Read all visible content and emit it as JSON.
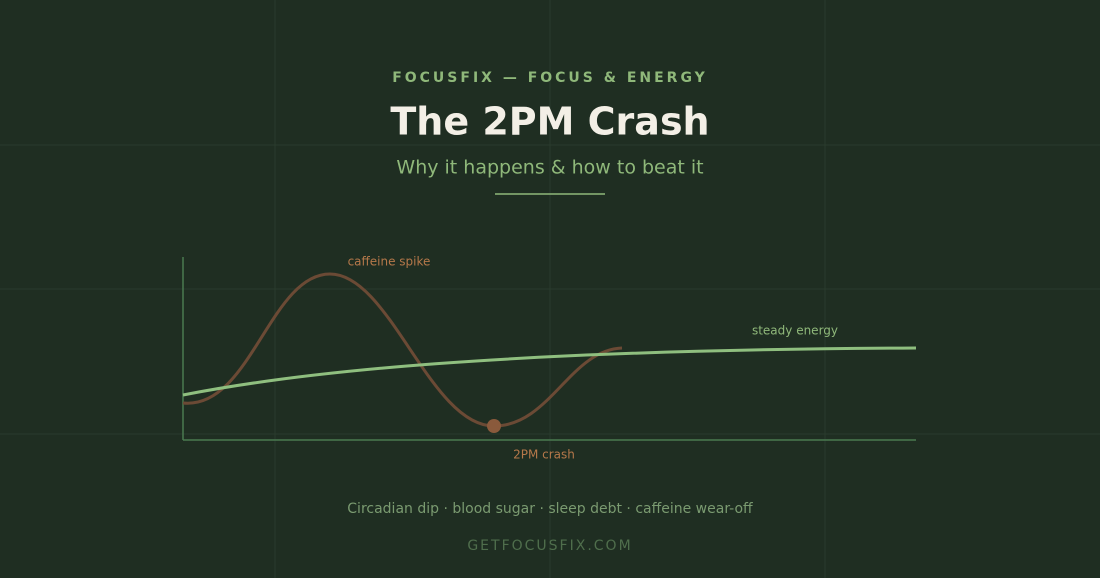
{
  "header": {
    "brand": "FOCUSFIX — FOCUS & ENERGY",
    "title": "The 2PM Crash",
    "subtitle": "Why it happens & how to beat it"
  },
  "illustration": {
    "spike_label": "caffeine spike",
    "steady_label": "steady energy",
    "crash_label": "2PM crash"
  },
  "footer": {
    "causes": "Circadian dip · blood sugar · sleep debt · caffeine wear-off",
    "url": "GETFOCUSFIX.COM"
  }
}
